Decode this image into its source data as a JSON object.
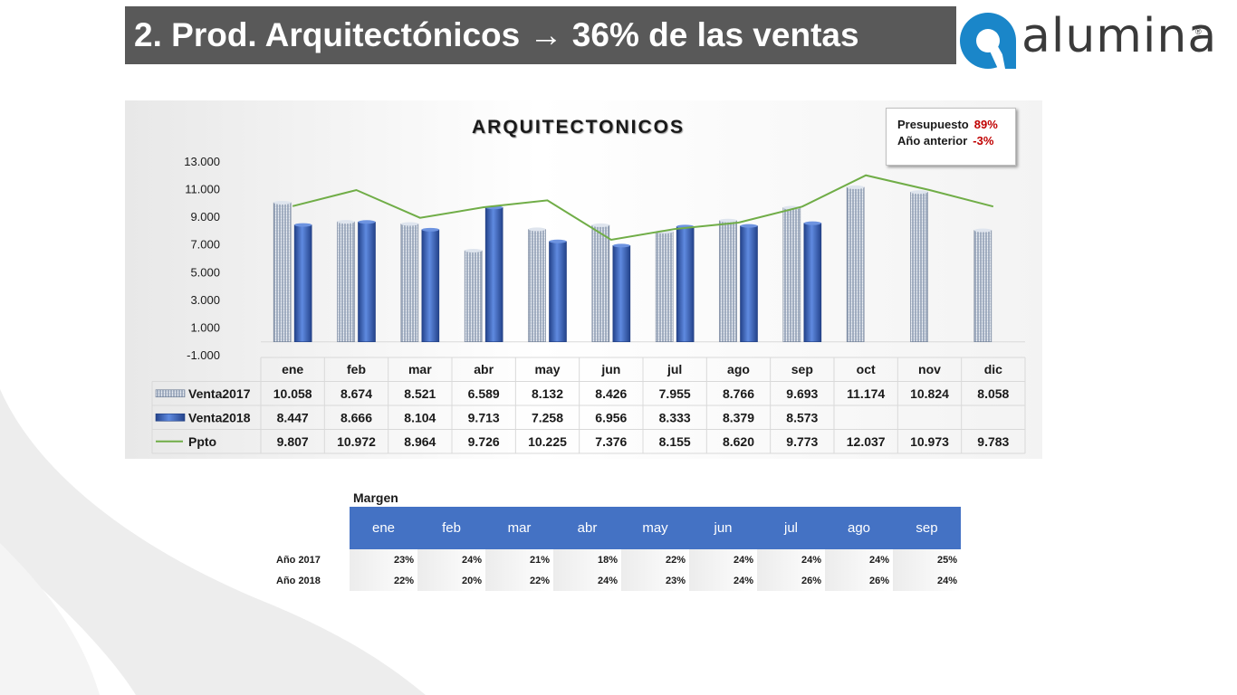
{
  "header": {
    "title": "2. Prod. Arquitectónicos → 36% de las ventas"
  },
  "logo": {
    "brand": "alumina",
    "mark": "alumina-logo-icon",
    "reg": "®",
    "color_mark": "#1a86c9"
  },
  "kpis": [
    {
      "label": "Presupuesto",
      "value": "89%"
    },
    {
      "label": "Año anterior",
      "value": "-3%"
    }
  ],
  "chart_data": {
    "type": "bar",
    "title": "ARQUITECTONICOS",
    "categories": [
      "ene",
      "feb",
      "mar",
      "abr",
      "may",
      "jun",
      "jul",
      "ago",
      "sep",
      "oct",
      "nov",
      "dic"
    ],
    "ylim": [
      -1000,
      13000
    ],
    "yticks": [
      "-1.000",
      "1.000",
      "3.000",
      "5.000",
      "7.000",
      "9.000",
      "11.000",
      "13.000"
    ],
    "ytick_values": [
      -1000,
      1000,
      3000,
      5000,
      7000,
      9000,
      11000,
      13000
    ],
    "grid": false,
    "legend": "data-table-below",
    "series": [
      {
        "name": "Venta2017",
        "kind": "bar",
        "color": "#b9c5d6",
        "values": [
          10058,
          8674,
          8521,
          6589,
          8132,
          8426,
          7955,
          8766,
          9693,
          11174,
          10824,
          8058
        ],
        "labels": [
          "10.058",
          "8.674",
          "8.521",
          "6.589",
          "8.132",
          "8.426",
          "7.955",
          "8.766",
          "9.693",
          "11.174",
          "10.824",
          "8.058"
        ]
      },
      {
        "name": "Venta2018",
        "kind": "bar",
        "color": "#3f67b8",
        "values": [
          8447,
          8666,
          8104,
          9713,
          7258,
          6956,
          8333,
          8379,
          8573,
          null,
          null,
          null
        ],
        "labels": [
          "8.447",
          "8.666",
          "8.104",
          "9.713",
          "7.258",
          "6.956",
          "8.333",
          "8.379",
          "8.573",
          "",
          "",
          ""
        ]
      },
      {
        "name": "Ppto",
        "kind": "line",
        "color": "#70ad47",
        "values": [
          9807,
          10972,
          8964,
          9726,
          10225,
          7376,
          8155,
          8620,
          9773,
          12037,
          10973,
          9783
        ],
        "labels": [
          "9.807",
          "10.972",
          "8.964",
          "9.726",
          "10.225",
          "7.376",
          "8.155",
          "8.620",
          "9.773",
          "12.037",
          "10.973",
          "9.783"
        ]
      }
    ]
  },
  "margin_table": {
    "title": "Margen",
    "months": [
      "ene",
      "feb",
      "mar",
      "abr",
      "may",
      "jun",
      "jul",
      "ago",
      "sep"
    ],
    "rows": [
      {
        "label": "Año 2017",
        "values": [
          "23%",
          "24%",
          "21%",
          "18%",
          "22%",
          "24%",
          "24%",
          "24%",
          "25%"
        ]
      },
      {
        "label": "Año 2018",
        "values": [
          "22%",
          "20%",
          "22%",
          "24%",
          "23%",
          "24%",
          "26%",
          "26%",
          "24%"
        ]
      }
    ]
  }
}
